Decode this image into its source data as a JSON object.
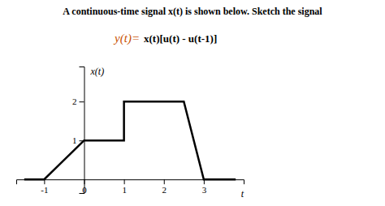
{
  "chart_data": {
    "type": "line",
    "title": "A continuous-time signal x(t) is shown below. Sketch the signal",
    "annotations": [
      {
        "text": "y(t)=",
        "color": "#c85000"
      },
      {
        "text": "x(t)[u(t) - u(t-1)]"
      }
    ],
    "x": [
      -1.5,
      -1,
      0,
      0,
      1,
      1,
      2,
      2.5,
      3,
      3.8
    ],
    "values": [
      0,
      0,
      1,
      1,
      1,
      2,
      2,
      2,
      0,
      0
    ],
    "color": "#000000",
    "xlim": [
      -1.7,
      4.0
    ],
    "ylim": [
      -0.35,
      2.9
    ],
    "xticks": [
      -1,
      0,
      1,
      2,
      3
    ],
    "yticks": [
      1,
      2
    ],
    "xlabel": "t",
    "ylabel": "x(t)"
  }
}
